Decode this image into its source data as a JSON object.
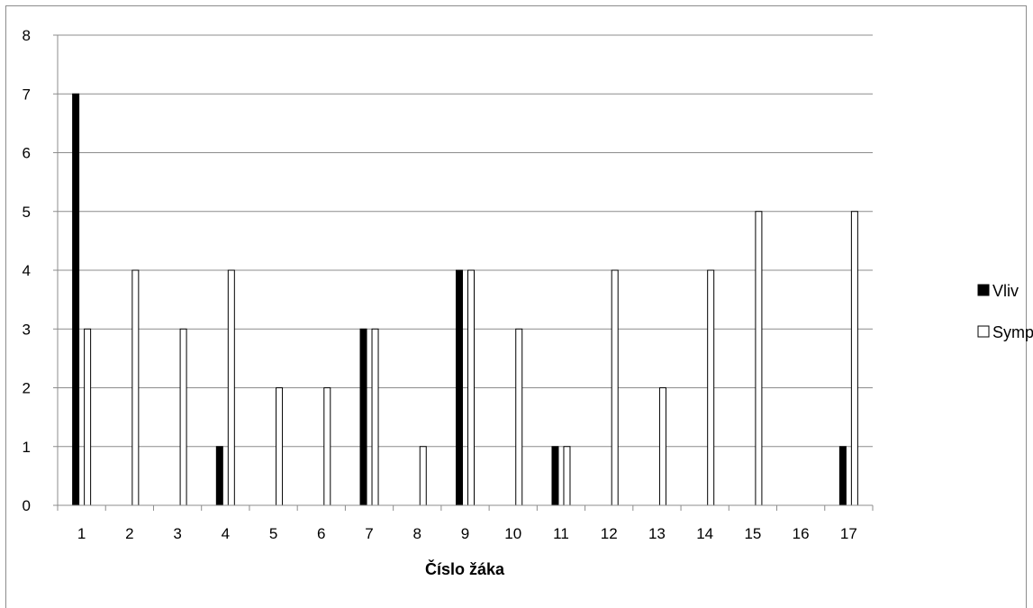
{
  "chart_data": {
    "type": "bar",
    "title": "",
    "xlabel": "Číslo žáka",
    "ylabel": "",
    "ylim": [
      0,
      8
    ],
    "yticks": [
      0,
      1,
      2,
      3,
      4,
      5,
      6,
      7,
      8
    ],
    "grid": true,
    "legend_position": "right",
    "categories": [
      "1",
      "2",
      "3",
      "4",
      "5",
      "6",
      "7",
      "8",
      "9",
      "10",
      "11",
      "12",
      "13",
      "14",
      "15",
      "16",
      "17"
    ],
    "series": [
      {
        "name": "Vliv",
        "color": "#000000",
        "fill": "#000000",
        "values": [
          7,
          0,
          0,
          1,
          0,
          0,
          3,
          0,
          4,
          0,
          1,
          0,
          0,
          0,
          0,
          0,
          1
        ]
      },
      {
        "name": "Sympatie",
        "color": "#000000",
        "fill": "#ffffff",
        "values": [
          3,
          4,
          3,
          4,
          2,
          2,
          3,
          1,
          4,
          3,
          1,
          4,
          2,
          4,
          5,
          0,
          5
        ]
      }
    ]
  }
}
